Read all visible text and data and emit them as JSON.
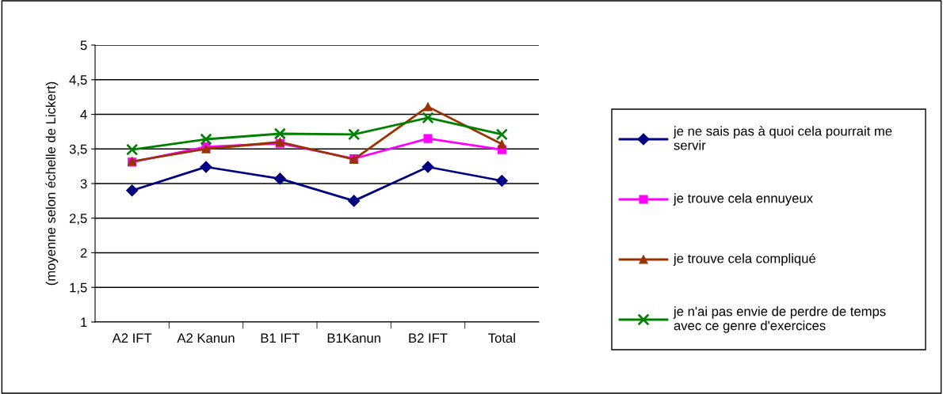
{
  "chart_data": {
    "type": "line",
    "ylabel": "(moyenne selon échelle de Lickert)",
    "categories": [
      "A2 IFT",
      "A2 Kanun",
      "B1 IFT",
      "B1Kanun",
      "B2 IFT",
      "Total"
    ],
    "series": [
      {
        "name": "je ne sais pas à quoi cela pourrait me servir",
        "color": "#000080",
        "marker": "diamond",
        "values": [
          2.9,
          3.24,
          3.07,
          2.75,
          3.24,
          3.04
        ]
      },
      {
        "name": "je trouve cela ennuyeux",
        "color": "#ff00ff",
        "marker": "square",
        "values": [
          3.31,
          3.53,
          3.58,
          3.36,
          3.65,
          3.49
        ]
      },
      {
        "name": "je trouve cela compliqué",
        "color": "#993300",
        "marker": "triangle",
        "values": [
          3.32,
          3.5,
          3.6,
          3.35,
          4.11,
          3.57
        ]
      },
      {
        "name": "je n'ai pas envie de perdre de temps avec ce genre d'exercices",
        "color": "#008000",
        "marker": "cross",
        "values": [
          3.49,
          3.64,
          3.72,
          3.71,
          3.95,
          3.71
        ]
      }
    ],
    "ylim": [
      1,
      5
    ],
    "yticks": [
      {
        "value": 1,
        "label": "1"
      },
      {
        "value": 1.5,
        "label": "1,5"
      },
      {
        "value": 2,
        "label": "2"
      },
      {
        "value": 2.5,
        "label": "2,5"
      },
      {
        "value": 3,
        "label": "3"
      },
      {
        "value": 3.5,
        "label": "3,5"
      },
      {
        "value": 4,
        "label": "4"
      },
      {
        "value": 4.5,
        "label": "4,5"
      },
      {
        "value": 5,
        "label": "5"
      }
    ],
    "grid": "y",
    "legend": "right"
  }
}
